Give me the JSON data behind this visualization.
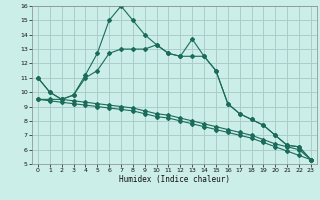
{
  "xlabel": "Humidex (Indice chaleur)",
  "bg_color": "#cceee8",
  "line_color": "#1a6b5a",
  "grid_color": "#aacccc",
  "xlim": [
    -0.5,
    23.5
  ],
  "ylim": [
    5,
    16
  ],
  "xticks": [
    0,
    1,
    2,
    3,
    4,
    5,
    6,
    7,
    8,
    9,
    10,
    11,
    12,
    13,
    14,
    15,
    16,
    17,
    18,
    19,
    20,
    21,
    22,
    23
  ],
  "yticks": [
    5,
    6,
    7,
    8,
    9,
    10,
    11,
    12,
    13,
    14,
    15,
    16
  ],
  "line_spike_x": [
    0,
    1,
    2,
    3,
    4,
    5,
    6,
    7,
    8,
    9,
    10,
    11,
    12,
    13,
    14,
    15,
    16,
    17,
    18,
    19,
    20,
    21,
    22,
    23
  ],
  "line_spike_y": [
    11.0,
    10.0,
    9.5,
    9.8,
    11.2,
    12.7,
    15.0,
    16.0,
    15.0,
    14.0,
    13.3,
    12.7,
    12.5,
    13.7,
    12.5,
    11.5,
    9.2,
    8.5,
    8.1,
    7.7,
    7.0,
    6.3,
    6.2,
    5.3
  ],
  "line_smooth_x": [
    0,
    1,
    2,
    3,
    4,
    5,
    6,
    7,
    8,
    9,
    10,
    11,
    12,
    13,
    14,
    15,
    16,
    17,
    18,
    19,
    20,
    21,
    22,
    23
  ],
  "line_smooth_y": [
    11.0,
    10.0,
    9.5,
    9.8,
    11.0,
    11.5,
    12.7,
    13.0,
    13.0,
    13.0,
    13.3,
    12.7,
    12.5,
    12.5,
    12.5,
    11.5,
    9.2,
    8.5,
    8.1,
    7.7,
    7.0,
    6.3,
    6.2,
    5.3
  ],
  "line_flat1_x": [
    0,
    1,
    2,
    3,
    4,
    5,
    6,
    7,
    8,
    9,
    10,
    11,
    12,
    13,
    14,
    15,
    16,
    17,
    18,
    19,
    20,
    21,
    22,
    23
  ],
  "line_flat1_y": [
    9.5,
    9.5,
    9.5,
    9.4,
    9.3,
    9.2,
    9.1,
    9.0,
    8.9,
    8.7,
    8.5,
    8.4,
    8.2,
    8.0,
    7.8,
    7.6,
    7.4,
    7.2,
    7.0,
    6.7,
    6.4,
    6.2,
    6.0,
    5.3
  ],
  "line_flat2_x": [
    0,
    1,
    2,
    3,
    4,
    5,
    6,
    7,
    8,
    9,
    10,
    11,
    12,
    13,
    14,
    15,
    16,
    17,
    18,
    19,
    20,
    21,
    22,
    23
  ],
  "line_flat2_y": [
    9.5,
    9.4,
    9.3,
    9.2,
    9.1,
    9.0,
    8.9,
    8.8,
    8.7,
    8.5,
    8.3,
    8.2,
    8.0,
    7.8,
    7.6,
    7.4,
    7.2,
    7.0,
    6.8,
    6.5,
    6.2,
    5.9,
    5.6,
    5.3
  ]
}
